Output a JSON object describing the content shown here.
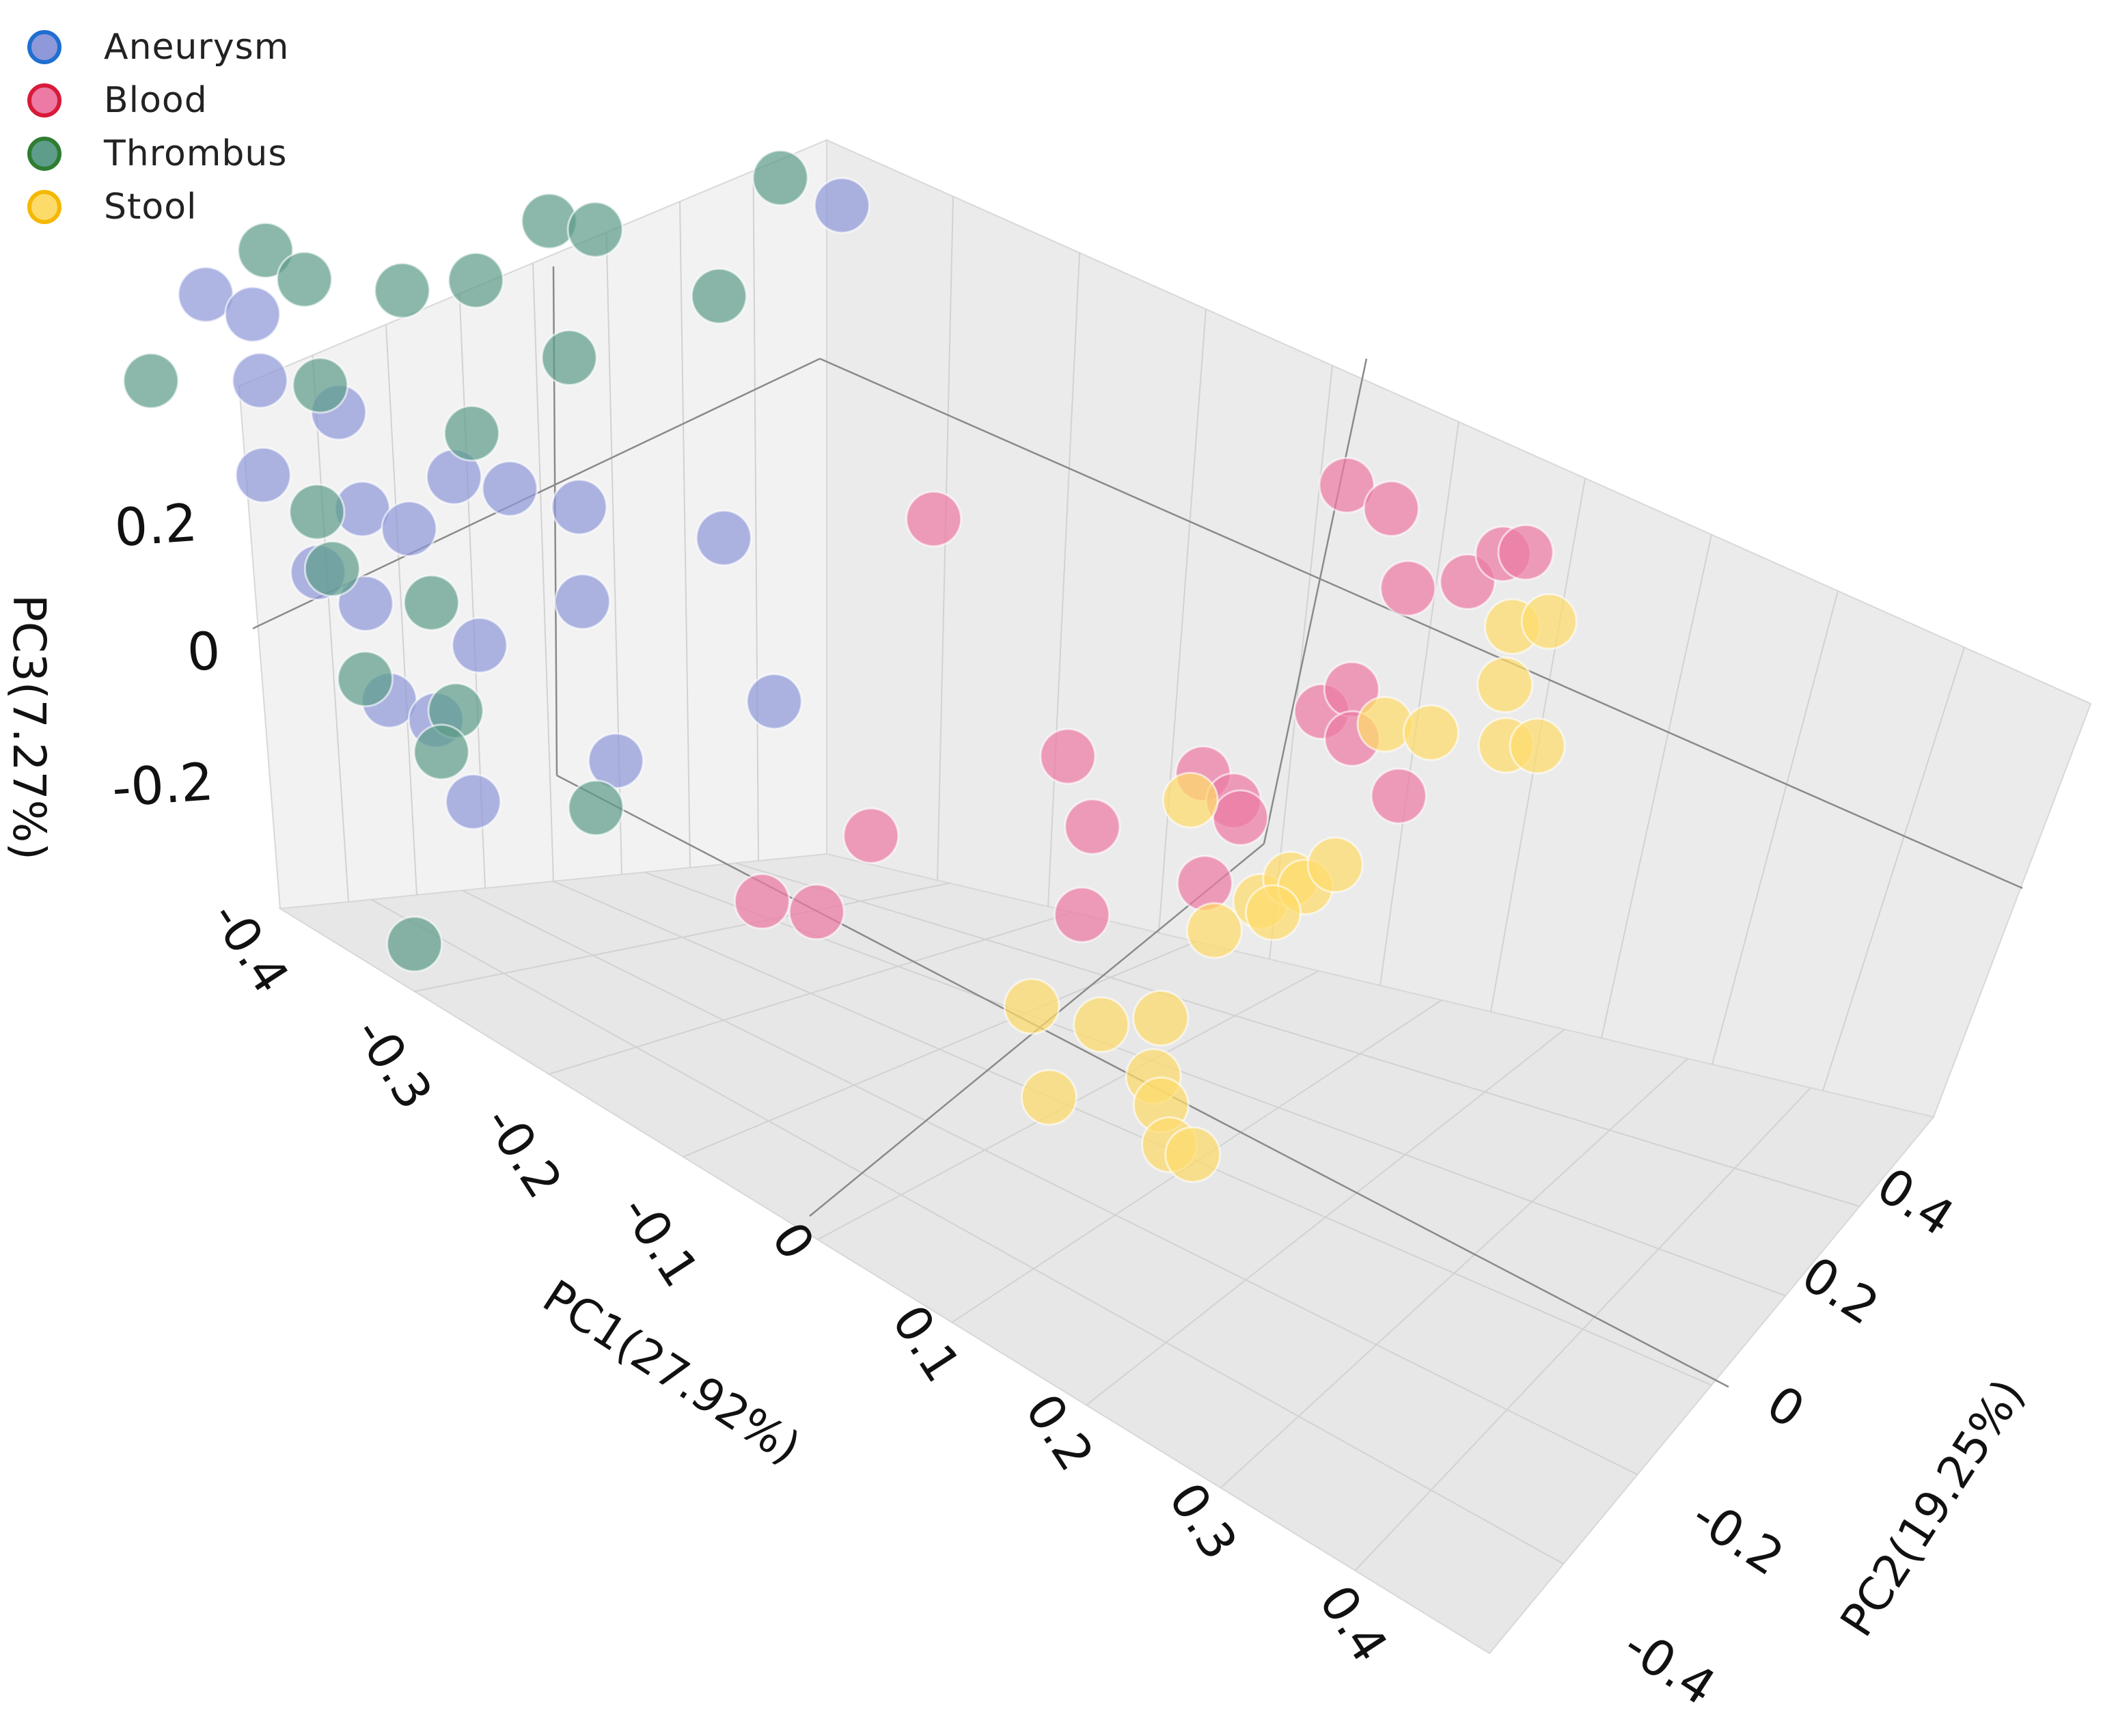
{
  "chart_data": {
    "type": "scatter",
    "projection": "3d",
    "legend": [
      {
        "name": "Aneurysm",
        "fill": "#8f98d8",
        "edge": "#1f6fd1"
      },
      {
        "name": "Blood",
        "fill": "#ec7aa4",
        "edge": "#d81a3a"
      },
      {
        "name": "Thrombus",
        "fill": "#5e9d8a",
        "edge": "#2e7d32"
      },
      {
        "name": "Stool",
        "fill": "#fddb6b",
        "edge": "#f5b800"
      }
    ],
    "xlabel": "PC1(27.92%)",
    "ylabel": "PC2(19.25%)",
    "zlabel": "PC3(7.27%)",
    "x_ticks": [
      "-0.4",
      "-0.3",
      "-0.2",
      "-0.1",
      "0",
      "0.1",
      "0.2",
      "0.3",
      "0.4"
    ],
    "y_ticks": [
      "-0.4",
      "-0.2",
      "0",
      "0.2",
      "0.4"
    ],
    "z_ticks": [
      "0.2",
      "0",
      "-0.2"
    ],
    "xlim": [
      -0.45,
      0.45
    ],
    "ylim": [
      -0.5,
      0.5
    ],
    "zlim": [
      -0.3,
      0.3
    ],
    "series": [
      {
        "name": "Aneurysm",
        "points": [
          [
            -0.4,
            0.0,
            0.2
          ],
          [
            -0.38,
            0.02,
            0.18
          ],
          [
            -0.36,
            -0.01,
            0.16
          ],
          [
            -0.33,
            0.03,
            0.12
          ],
          [
            -0.35,
            -0.03,
            0.1
          ],
          [
            -0.3,
            0.0,
            0.08
          ],
          [
            -0.31,
            -0.04,
            0.05
          ],
          [
            -0.28,
            0.02,
            0.06
          ],
          [
            -0.29,
            -0.02,
            0.02
          ],
          [
            -0.26,
            -0.05,
            -0.02
          ],
          [
            -0.24,
            -0.03,
            -0.04
          ],
          [
            -0.22,
            0.04,
            0.12
          ],
          [
            -0.19,
            0.07,
            0.1
          ],
          [
            -0.18,
            0.05,
            0.04
          ],
          [
            -0.12,
            0.12,
            0.08
          ],
          [
            -0.2,
            -0.06,
            -0.06
          ],
          [
            -0.14,
            0.01,
            -0.04
          ],
          [
            -0.08,
            0.1,
            -0.02
          ],
          [
            -0.1,
            0.25,
            0.28
          ],
          [
            -0.23,
            0.01,
            0.0
          ],
          [
            -0.27,
            0.06,
            0.08
          ]
        ]
      },
      {
        "name": "Blood",
        "points": [
          [
            -0.02,
            0.2,
            0.1
          ],
          [
            0.14,
            0.42,
            0.06
          ],
          [
            0.17,
            0.42,
            0.06
          ],
          [
            0.19,
            0.4,
            0.02
          ],
          [
            0.22,
            0.42,
            0.03
          ],
          [
            0.24,
            0.43,
            0.06
          ],
          [
            0.25,
            0.44,
            0.06
          ],
          [
            0.16,
            0.34,
            -0.06
          ],
          [
            0.17,
            0.36,
            -0.05
          ],
          [
            0.18,
            0.34,
            -0.07
          ],
          [
            0.21,
            0.34,
            -0.1
          ],
          [
            0.11,
            0.28,
            -0.1
          ],
          [
            0.13,
            0.28,
            -0.11
          ],
          [
            0.14,
            0.27,
            -0.11
          ],
          [
            0.04,
            0.24,
            -0.1
          ],
          [
            0.06,
            0.23,
            -0.14
          ],
          [
            0.13,
            0.24,
            -0.15
          ],
          [
            -0.03,
            0.12,
            -0.12
          ],
          [
            -0.03,
            0.05,
            -0.13
          ],
          [
            -0.05,
            0.02,
            -0.11
          ],
          [
            0.09,
            0.16,
            -0.14
          ]
        ]
      },
      {
        "name": "Thrombus",
        "points": [
          [
            -0.43,
            -0.02,
            0.12
          ],
          [
            -0.38,
            0.04,
            0.22
          ],
          [
            -0.36,
            0.05,
            0.2
          ],
          [
            -0.33,
            0.01,
            0.16
          ],
          [
            -0.31,
            0.08,
            0.2
          ],
          [
            -0.27,
            0.1,
            0.22
          ],
          [
            -0.24,
            0.14,
            0.26
          ],
          [
            -0.22,
            0.16,
            0.25
          ],
          [
            -0.22,
            0.12,
            0.17
          ],
          [
            -0.25,
            0.05,
            0.14
          ],
          [
            -0.16,
            0.2,
            0.2
          ],
          [
            -0.32,
            -0.02,
            0.08
          ],
          [
            -0.3,
            -0.04,
            0.06
          ],
          [
            -0.27,
            -0.06,
            0.0
          ],
          [
            -0.22,
            -0.04,
            -0.01
          ],
          [
            -0.22,
            -0.06,
            -0.03
          ],
          [
            -0.15,
            0.0,
            -0.08
          ],
          [
            -0.2,
            -0.14,
            -0.12
          ],
          [
            -0.13,
            0.23,
            0.3
          ],
          [
            -0.25,
            -0.01,
            0.04
          ]
        ]
      },
      {
        "name": "Stool",
        "points": [
          [
            0.22,
            0.47,
            -0.05
          ],
          [
            0.24,
            0.48,
            -0.04
          ],
          [
            0.23,
            0.44,
            -0.07
          ],
          [
            0.24,
            0.42,
            -0.1
          ],
          [
            0.25,
            0.44,
            -0.11
          ],
          [
            0.18,
            0.38,
            -0.09
          ],
          [
            0.2,
            0.4,
            -0.1
          ],
          [
            0.1,
            0.28,
            -0.13
          ],
          [
            0.24,
            0.06,
            0.03
          ],
          [
            0.25,
            0.1,
            0.03
          ],
          [
            0.26,
            0.12,
            0.04
          ],
          [
            0.27,
            0.12,
            0.04
          ],
          [
            0.28,
            0.14,
            0.05
          ],
          [
            0.27,
            0.08,
            0.05
          ],
          [
            0.18,
            -0.06,
            0.02
          ],
          [
            0.2,
            -0.08,
            -0.03
          ],
          [
            0.21,
            -0.03,
            0.0
          ],
          [
            0.24,
            -0.01,
            0.01
          ],
          [
            0.25,
            -0.04,
            -0.01
          ],
          [
            0.26,
            -0.05,
            -0.02
          ],
          [
            0.27,
            -0.06,
            -0.04
          ],
          [
            0.28,
            -0.05,
            -0.05
          ]
        ]
      }
    ]
  }
}
